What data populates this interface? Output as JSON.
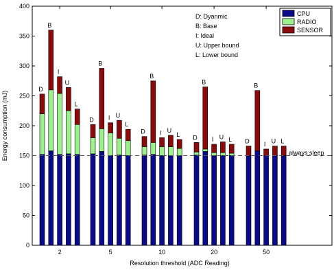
{
  "chart_data": {
    "type": "bar",
    "stacked": true,
    "xlabel": "Resolution threshold (ADC Reading)",
    "ylabel": "Energy consumption (mJ)",
    "ylim": [
      0,
      400
    ],
    "yticks": [
      0,
      50,
      100,
      150,
      200,
      250,
      300,
      350,
      400
    ],
    "groups": [
      "2",
      "5",
      "10",
      "20",
      "50"
    ],
    "methods": [
      "D",
      "B",
      "I",
      "U",
      "L"
    ],
    "series": [
      {
        "name": "CPU",
        "color": "#0a0a8c",
        "values": [
          [
            152,
            158,
            152,
            153,
            152
          ],
          [
            153,
            157,
            150,
            151,
            150
          ],
          [
            151,
            152,
            150,
            150,
            150
          ],
          [
            151,
            157,
            150,
            150,
            150
          ],
          [
            150,
            158,
            150,
            150,
            150
          ]
        ]
      },
      {
        "name": "RADIO",
        "color": "#9cf18c",
        "values": [
          [
            68,
            102,
            102,
            72,
            50
          ],
          [
            27,
            38,
            38,
            28,
            25
          ],
          [
            14,
            20,
            15,
            15,
            12
          ],
          [
            5,
            4,
            5,
            5,
            4
          ],
          [
            0,
            0,
            0,
            0,
            0
          ]
        ]
      },
      {
        "name": "SENSOR",
        "color": "#8c0a0a",
        "values": [
          [
            33,
            100,
            28,
            39,
            26
          ],
          [
            22,
            101,
            17,
            30,
            19
          ],
          [
            17,
            103,
            15,
            19,
            15
          ],
          [
            16,
            104,
            14,
            18,
            15
          ],
          [
            16,
            101,
            11,
            16,
            16
          ]
        ]
      }
    ],
    "reference_line": {
      "value": 150,
      "label": "always sleep"
    },
    "legend": {
      "placement": "top-right",
      "entries": [
        "CPU",
        "RADIO",
        "SENSOR"
      ]
    },
    "annotations": [
      "D: Dyanmic",
      "B: Base",
      "I:   Ideal",
      "U:  Upper bound",
      "L:  Lower bound"
    ]
  }
}
